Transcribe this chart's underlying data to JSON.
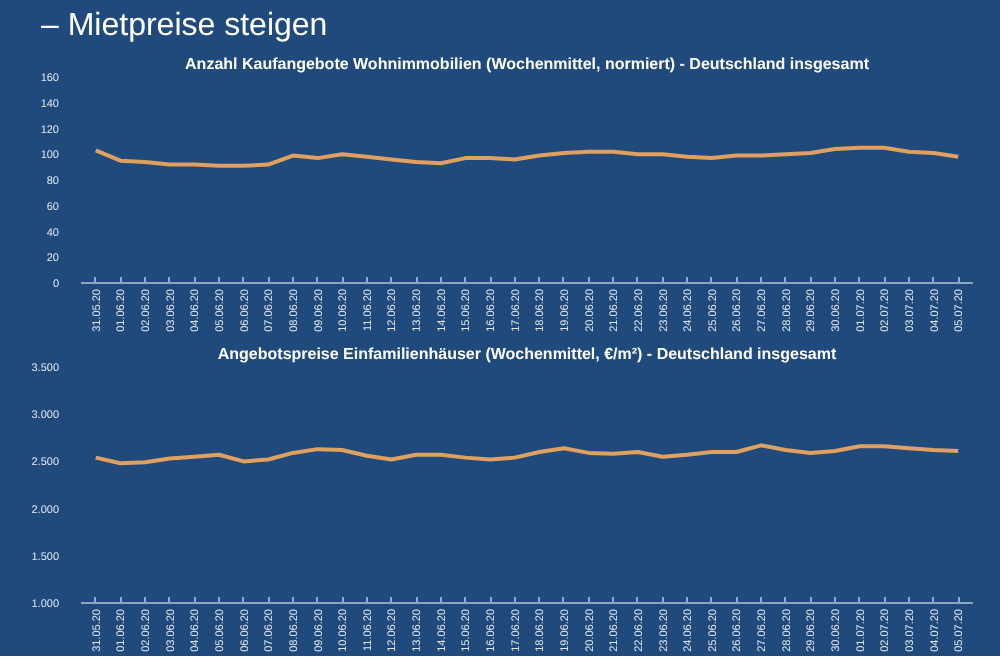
{
  "chart_data": [
    {
      "type": "line",
      "title": "Anzahl Kaufangebote Wohnimmobilien (Wochenmittel, normiert) - Deutschland insgesamt",
      "annotations": [
        "– Mietpreise steigen"
      ],
      "categories": [
        "31.05.20",
        "01.06.20",
        "02.06.20",
        "03.06.20",
        "04.06.20",
        "05.06.20",
        "06.06.20",
        "07.06.20",
        "08.06.20",
        "09.06.20",
        "10.06.20",
        "11.06.20",
        "12.06.20",
        "13.06.20",
        "14.06.20",
        "15.06.20",
        "16.06.20",
        "17.06.20",
        "18.06.20",
        "19.06.20",
        "20.06.20",
        "21.06.20",
        "22.06.20",
        "23.06.20",
        "24.06.20",
        "25.06.20",
        "26.06.20",
        "27.06.20",
        "28.06.20",
        "29.06.20",
        "30.06.20",
        "01.07.20",
        "02.07.20",
        "03.07.20",
        "04.07.20",
        "05.07.20"
      ],
      "series": [
        {
          "color": "#e0a060",
          "values": [
            103,
            95,
            94,
            92,
            92,
            91,
            91,
            92,
            99,
            97,
            100,
            98,
            96,
            94,
            93,
            97,
            97,
            96,
            99,
            101,
            102,
            102,
            100,
            100,
            98,
            97,
            99,
            99,
            100,
            101,
            104,
            105,
            105,
            102,
            101,
            98
          ]
        }
      ],
      "ylim": [
        0,
        160
      ],
      "yticks": [
        0,
        20,
        40,
        60,
        80,
        100,
        120,
        140,
        160
      ],
      "grid": false
    },
    {
      "type": "line",
      "title": "Angebotspreise Einfamilienhäuser (Wochenmittel, €/m²) - Deutschland insgesamt",
      "categories": [
        "31.05.20",
        "01.06.20",
        "02.06.20",
        "03.06.20",
        "04.06.20",
        "05.06.20",
        "06.06.20",
        "07.06.20",
        "08.06.20",
        "09.06.20",
        "10.06.20",
        "11.06.20",
        "12.06.20",
        "13.06.20",
        "14.06.20",
        "15.06.20",
        "16.06.20",
        "17.06.20",
        "18.06.20",
        "19.06.20",
        "20.06.20",
        "21.06.20",
        "22.06.20",
        "23.06.20",
        "24.06.20",
        "25.06.20",
        "26.06.20",
        "27.06.20",
        "28.06.20",
        "29.06.20",
        "30.06.20",
        "01.07.20",
        "02.07.20",
        "03.07.20",
        "04.07.20",
        "05.07.20"
      ],
      "series": [
        {
          "color": "#e0a060",
          "values": [
            2540,
            2480,
            2490,
            2530,
            2550,
            2570,
            2500,
            2520,
            2590,
            2630,
            2620,
            2560,
            2520,
            2570,
            2570,
            2540,
            2520,
            2540,
            2600,
            2640,
            2590,
            2580,
            2600,
            2550,
            2570,
            2600,
            2600,
            2670,
            2620,
            2590,
            2610,
            2660,
            2660,
            2640,
            2620,
            2610
          ]
        }
      ],
      "ylim": [
        1000,
        3500
      ],
      "yticks": [
        {
          "value": 1000,
          "label": "1.000"
        },
        {
          "value": 1500,
          "label": "1.500"
        },
        {
          "value": 2000,
          "label": "2.000"
        },
        {
          "value": 2500,
          "label": "2.500"
        },
        {
          "value": 3000,
          "label": "3.000"
        },
        {
          "value": 3500,
          "label": "3.500"
        }
      ],
      "grid": false
    }
  ]
}
